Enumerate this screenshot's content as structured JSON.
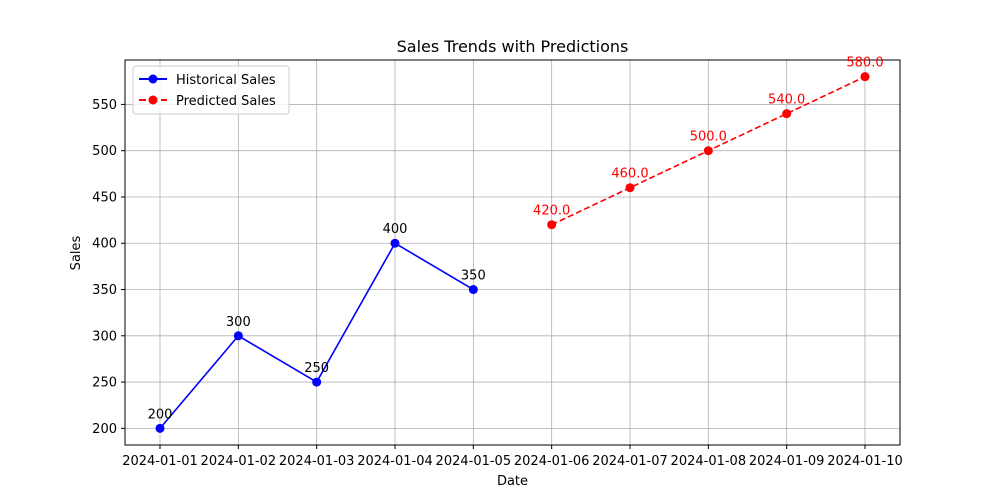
{
  "chart_data": {
    "type": "line",
    "title": "Sales Trends with Predictions",
    "xlabel": "Date",
    "ylabel": "Sales",
    "categories": [
      "2024-01-01",
      "2024-01-02",
      "2024-01-03",
      "2024-01-04",
      "2024-01-05",
      "2024-01-06",
      "2024-01-07",
      "2024-01-08",
      "2024-01-09",
      "2024-01-10"
    ],
    "ylim": [
      182,
      598
    ],
    "y_ticks": [
      200,
      250,
      300,
      350,
      400,
      450,
      500,
      550
    ],
    "grid": true,
    "legend_position": "top-left",
    "series": [
      {
        "name": "Historical Sales",
        "color": "#0000ff",
        "line_style": "solid",
        "marker": "circle",
        "x": [
          "2024-01-01",
          "2024-01-02",
          "2024-01-03",
          "2024-01-04",
          "2024-01-05"
        ],
        "values": [
          200,
          300,
          250,
          400,
          350
        ],
        "labels": [
          "200",
          "300",
          "250",
          "400",
          "350"
        ]
      },
      {
        "name": "Predicted Sales",
        "color": "#ff0000",
        "line_style": "dashed",
        "marker": "circle",
        "x": [
          "2024-01-06",
          "2024-01-07",
          "2024-01-08",
          "2024-01-09",
          "2024-01-10"
        ],
        "values": [
          420.0,
          460.0,
          500.0,
          540.0,
          580.0
        ],
        "labels": [
          "420.0",
          "460.0",
          "500.0",
          "540.0",
          "580.0"
        ]
      }
    ]
  }
}
